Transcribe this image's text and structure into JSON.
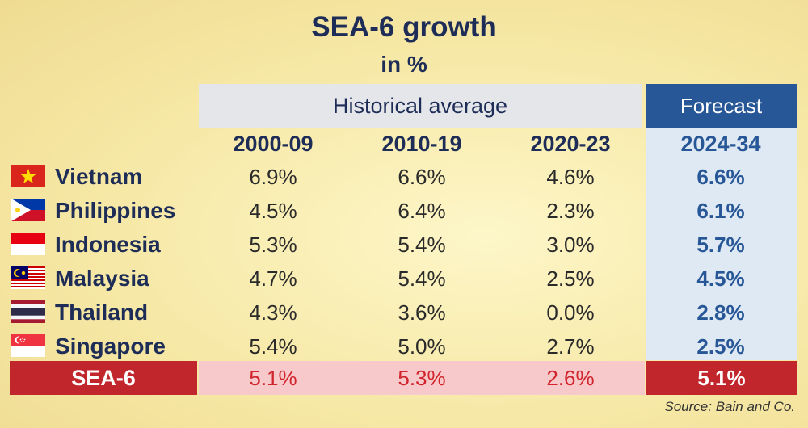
{
  "chart_data": {
    "type": "table",
    "title": "SEA-6 growth",
    "subtitle": "in %",
    "group_headers": {
      "historical": "Historical average",
      "forecast": "Forecast"
    },
    "columns": [
      "2000-09",
      "2010-19",
      "2020-23",
      "2024-34"
    ],
    "rows": [
      {
        "country": "Vietnam",
        "flag": "vietnam-flag-icon",
        "values": [
          "6.9%",
          "6.6%",
          "4.6%",
          "6.6%"
        ]
      },
      {
        "country": "Philippines",
        "flag": "philippines-flag-icon",
        "values": [
          "4.5%",
          "6.4%",
          "2.3%",
          "6.1%"
        ]
      },
      {
        "country": "Indonesia",
        "flag": "indonesia-flag-icon",
        "values": [
          "5.3%",
          "5.4%",
          "3.0%",
          "5.7%"
        ]
      },
      {
        "country": "Malaysia",
        "flag": "malaysia-flag-icon",
        "values": [
          "4.7%",
          "5.4%",
          "2.5%",
          "4.5%"
        ]
      },
      {
        "country": "Thailand",
        "flag": "thailand-flag-icon",
        "values": [
          "4.3%",
          "3.6%",
          "0.0%",
          "2.8%"
        ]
      },
      {
        "country": "Singapore",
        "flag": "singapore-flag-icon",
        "values": [
          "5.4%",
          "5.0%",
          "2.7%",
          "2.5%"
        ]
      }
    ],
    "total": {
      "label": "SEA-6",
      "values": [
        "5.1%",
        "5.3%",
        "2.6%",
        "5.1%"
      ]
    },
    "source": "Source: Bain and Co."
  },
  "colors": {
    "navy": "#1e2d57",
    "forecast_blue": "#275796",
    "forecast_band": "#dfe9f4",
    "total_red": "#c1262c",
    "total_band": "#f8c9cb"
  }
}
